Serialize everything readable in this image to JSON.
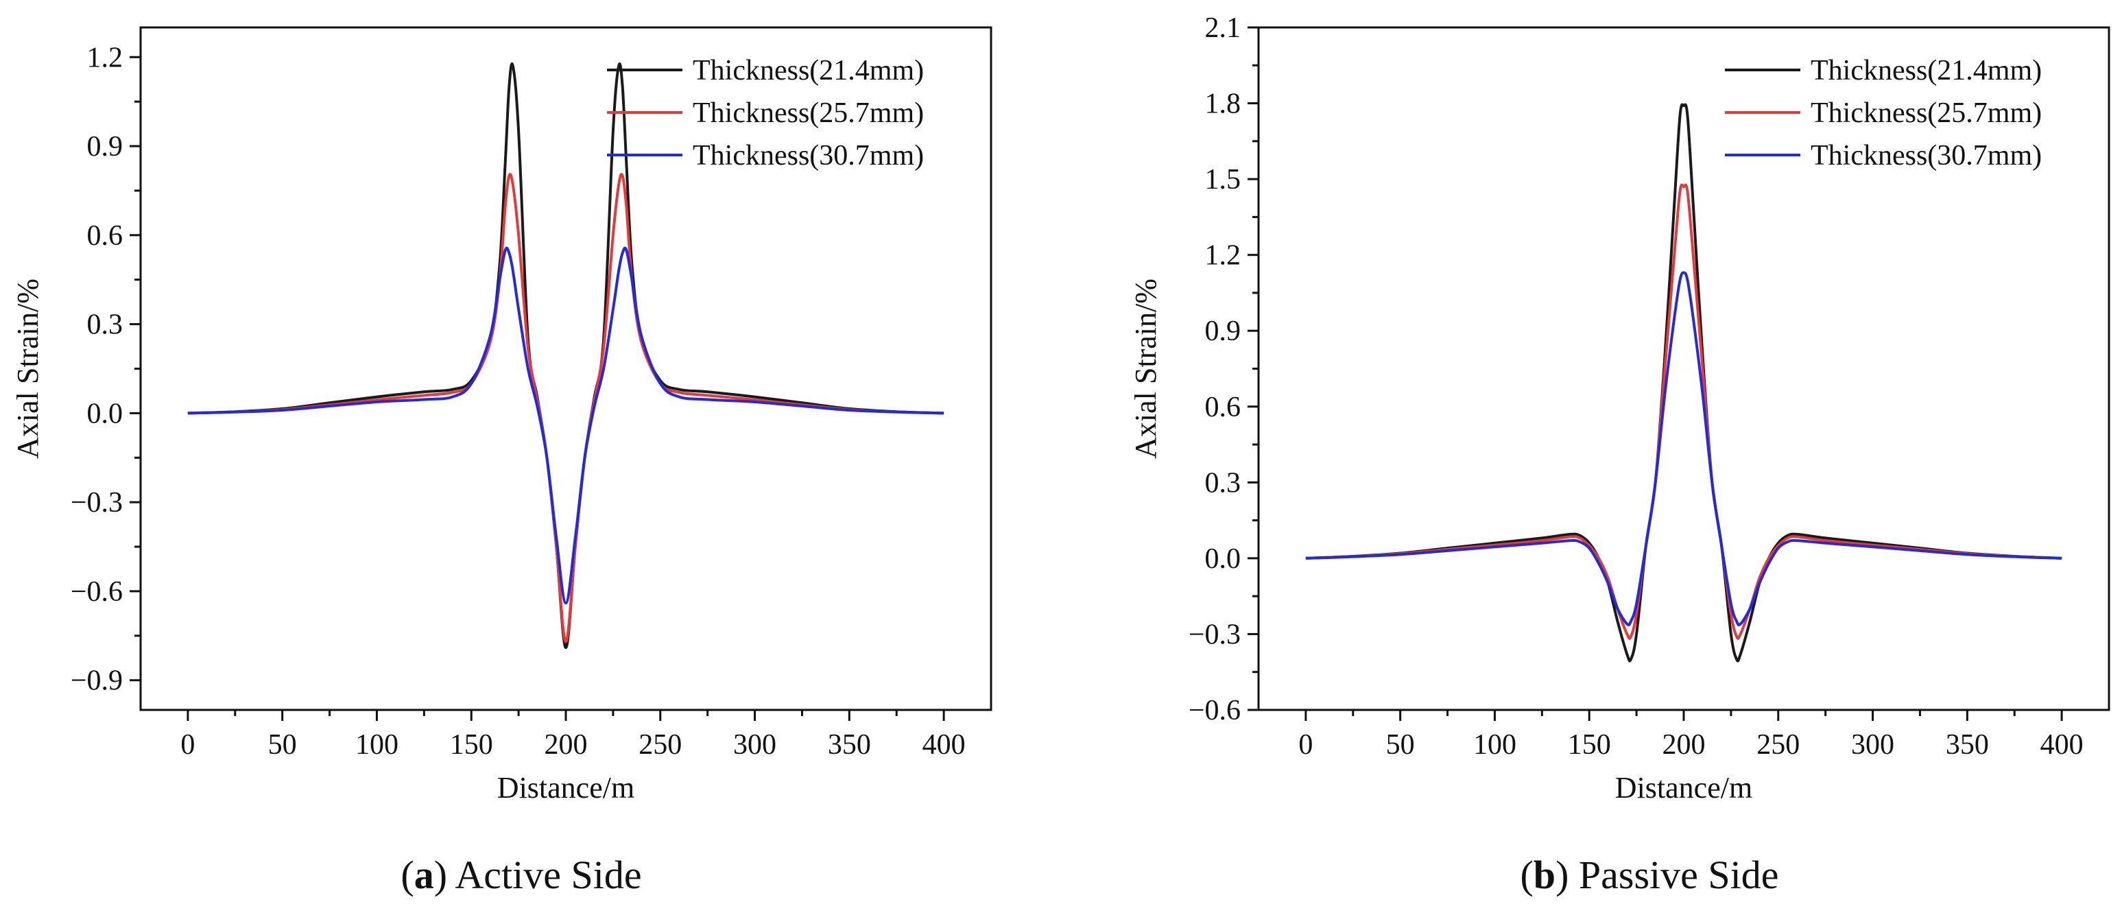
{
  "figure": {
    "panels": [
      {
        "caption_letter": "a",
        "caption_paren_open": "(",
        "caption_paren_close": ")",
        "caption_text": " Active Side"
      },
      {
        "caption_letter": "b",
        "caption_paren_open": "(",
        "caption_paren_close": ")",
        "caption_text": " Passive Side"
      }
    ]
  },
  "chart_data": [
    {
      "type": "line",
      "title": "",
      "panel": "(a) Active Side",
      "xlabel": "Distance/m",
      "ylabel": "Axial Strain/%",
      "xlim": [
        -25,
        425
      ],
      "ylim": [
        -1.0,
        1.3
      ],
      "xticks": [
        0,
        50,
        100,
        150,
        200,
        250,
        300,
        350,
        400
      ],
      "yticks": [
        -0.9,
        -0.6,
        -0.3,
        0.0,
        0.3,
        0.6,
        0.9,
        1.2
      ],
      "ytick_labels": [
        "−0.9",
        "−0.6",
        "−0.3",
        "0.0",
        "0.3",
        "0.6",
        "0.9",
        "1.2"
      ],
      "legend_position": "top-right",
      "series": [
        {
          "name": "Thickness(21.4mm)",
          "color": "#1a1a1a",
          "x": [
            0,
            25,
            50,
            75,
            100,
            125,
            140,
            150,
            160,
            165,
            168,
            170,
            172,
            175,
            180,
            185,
            190,
            195,
            200,
            205,
            210,
            215,
            220,
            225,
            228,
            230,
            232,
            235,
            240,
            250,
            260,
            275,
            300,
            325,
            350,
            375,
            400
          ],
          "y": [
            0.0,
            0.005,
            0.015,
            0.035,
            0.055,
            0.072,
            0.08,
            0.11,
            0.25,
            0.5,
            0.85,
            1.1,
            1.17,
            0.95,
            0.25,
            0.05,
            -0.15,
            -0.45,
            -0.79,
            -0.45,
            -0.15,
            0.05,
            0.25,
            0.95,
            1.17,
            1.1,
            0.85,
            0.5,
            0.25,
            0.11,
            0.08,
            0.072,
            0.055,
            0.035,
            0.015,
            0.005,
            0.0
          ]
        },
        {
          "name": "Thickness(25.7mm)",
          "color": "#e8393a",
          "x": [
            0,
            25,
            50,
            75,
            100,
            125,
            140,
            150,
            160,
            165,
            168,
            170,
            172,
            175,
            180,
            185,
            190,
            195,
            200,
            205,
            210,
            215,
            220,
            225,
            228,
            230,
            232,
            235,
            240,
            250,
            260,
            275,
            300,
            325,
            350,
            375,
            400
          ],
          "y": [
            0.0,
            0.004,
            0.012,
            0.028,
            0.045,
            0.06,
            0.07,
            0.1,
            0.24,
            0.45,
            0.7,
            0.8,
            0.77,
            0.6,
            0.22,
            0.04,
            -0.15,
            -0.45,
            -0.77,
            -0.45,
            -0.15,
            0.04,
            0.22,
            0.6,
            0.77,
            0.8,
            0.7,
            0.45,
            0.24,
            0.1,
            0.07,
            0.06,
            0.045,
            0.028,
            0.012,
            0.004,
            0.0
          ]
        },
        {
          "name": "Thickness(30.7mm)",
          "color": "#1f2bdc",
          "x": [
            0,
            25,
            50,
            75,
            100,
            125,
            140,
            150,
            160,
            165,
            168,
            170,
            172,
            175,
            180,
            185,
            190,
            195,
            200,
            205,
            210,
            215,
            220,
            225,
            228,
            230,
            232,
            235,
            240,
            250,
            260,
            275,
            300,
            325,
            350,
            375,
            400
          ],
          "y": [
            0.0,
            0.004,
            0.01,
            0.024,
            0.038,
            0.046,
            0.055,
            0.1,
            0.26,
            0.45,
            0.55,
            0.54,
            0.48,
            0.35,
            0.15,
            0.02,
            -0.15,
            -0.42,
            -0.64,
            -0.42,
            -0.15,
            0.02,
            0.15,
            0.35,
            0.48,
            0.54,
            0.55,
            0.45,
            0.26,
            0.1,
            0.055,
            0.046,
            0.038,
            0.024,
            0.01,
            0.004,
            0.0
          ]
        }
      ]
    },
    {
      "type": "line",
      "title": "",
      "panel": "(b) Passive Side",
      "xlabel": "Distance/m",
      "ylabel": "Axial Strain/%",
      "xlim": [
        -25,
        425
      ],
      "ylim": [
        -0.6,
        2.1
      ],
      "xticks": [
        0,
        50,
        100,
        150,
        200,
        250,
        300,
        350,
        400
      ],
      "yticks": [
        -0.6,
        -0.3,
        0.0,
        0.3,
        0.6,
        0.9,
        1.2,
        1.5,
        1.8,
        2.1
      ],
      "ytick_labels": [
        "−0.6",
        "−0.3",
        "0.0",
        "0.3",
        "0.6",
        "0.9",
        "1.2",
        "1.5",
        "1.8",
        "2.1"
      ],
      "legend_position": "top-right",
      "series": [
        {
          "name": "Thickness(21.4mm)",
          "color": "#1a1a1a",
          "x": [
            0,
            25,
            50,
            75,
            100,
            125,
            140,
            145,
            150,
            155,
            160,
            165,
            170,
            172,
            175,
            180,
            185,
            190,
            195,
            198,
            200,
            202,
            205,
            210,
            215,
            220,
            225,
            228,
            230,
            235,
            240,
            245,
            250,
            255,
            260,
            275,
            300,
            325,
            350,
            375,
            400
          ],
          "y": [
            0.0,
            0.008,
            0.02,
            0.04,
            0.06,
            0.08,
            0.095,
            0.09,
            0.06,
            0.0,
            -0.1,
            -0.25,
            -0.38,
            -0.4,
            -0.3,
            0.05,
            0.3,
            0.8,
            1.4,
            1.75,
            1.79,
            1.75,
            1.4,
            0.8,
            0.3,
            0.05,
            -0.3,
            -0.4,
            -0.38,
            -0.25,
            -0.1,
            0.0,
            0.06,
            0.09,
            0.095,
            0.08,
            0.06,
            0.04,
            0.02,
            0.008,
            0.0
          ]
        },
        {
          "name": "Thickness(25.7mm)",
          "color": "#e8393a",
          "x": [
            0,
            25,
            50,
            75,
            100,
            125,
            140,
            145,
            150,
            155,
            160,
            165,
            170,
            172,
            175,
            180,
            185,
            190,
            195,
            198,
            200,
            202,
            205,
            210,
            215,
            220,
            225,
            228,
            230,
            235,
            240,
            245,
            250,
            255,
            260,
            275,
            300,
            325,
            350,
            375,
            400
          ],
          "y": [
            0.0,
            0.007,
            0.018,
            0.035,
            0.052,
            0.07,
            0.085,
            0.08,
            0.05,
            0.0,
            -0.08,
            -0.2,
            -0.3,
            -0.31,
            -0.22,
            0.05,
            0.3,
            0.75,
            1.2,
            1.45,
            1.47,
            1.45,
            1.2,
            0.75,
            0.3,
            0.05,
            -0.22,
            -0.31,
            -0.3,
            -0.2,
            -0.08,
            0.0,
            0.05,
            0.08,
            0.085,
            0.07,
            0.052,
            0.035,
            0.018,
            0.007,
            0.0
          ]
        },
        {
          "name": "Thickness(30.7mm)",
          "color": "#1f2bdc",
          "x": [
            0,
            25,
            50,
            75,
            100,
            125,
            140,
            145,
            150,
            155,
            160,
            165,
            170,
            172,
            175,
            180,
            185,
            190,
            195,
            198,
            200,
            202,
            205,
            210,
            215,
            220,
            225,
            228,
            230,
            235,
            240,
            245,
            250,
            255,
            260,
            275,
            300,
            325,
            350,
            375,
            400
          ],
          "y": [
            0.0,
            0.006,
            0.015,
            0.03,
            0.045,
            0.06,
            0.07,
            0.065,
            0.04,
            -0.02,
            -0.1,
            -0.2,
            -0.26,
            -0.25,
            -0.18,
            0.05,
            0.3,
            0.65,
            0.95,
            1.1,
            1.13,
            1.1,
            0.95,
            0.65,
            0.3,
            0.05,
            -0.18,
            -0.25,
            -0.26,
            -0.2,
            -0.1,
            -0.02,
            0.04,
            0.065,
            0.07,
            0.06,
            0.045,
            0.03,
            0.015,
            0.006,
            0.0
          ]
        }
      ]
    }
  ]
}
